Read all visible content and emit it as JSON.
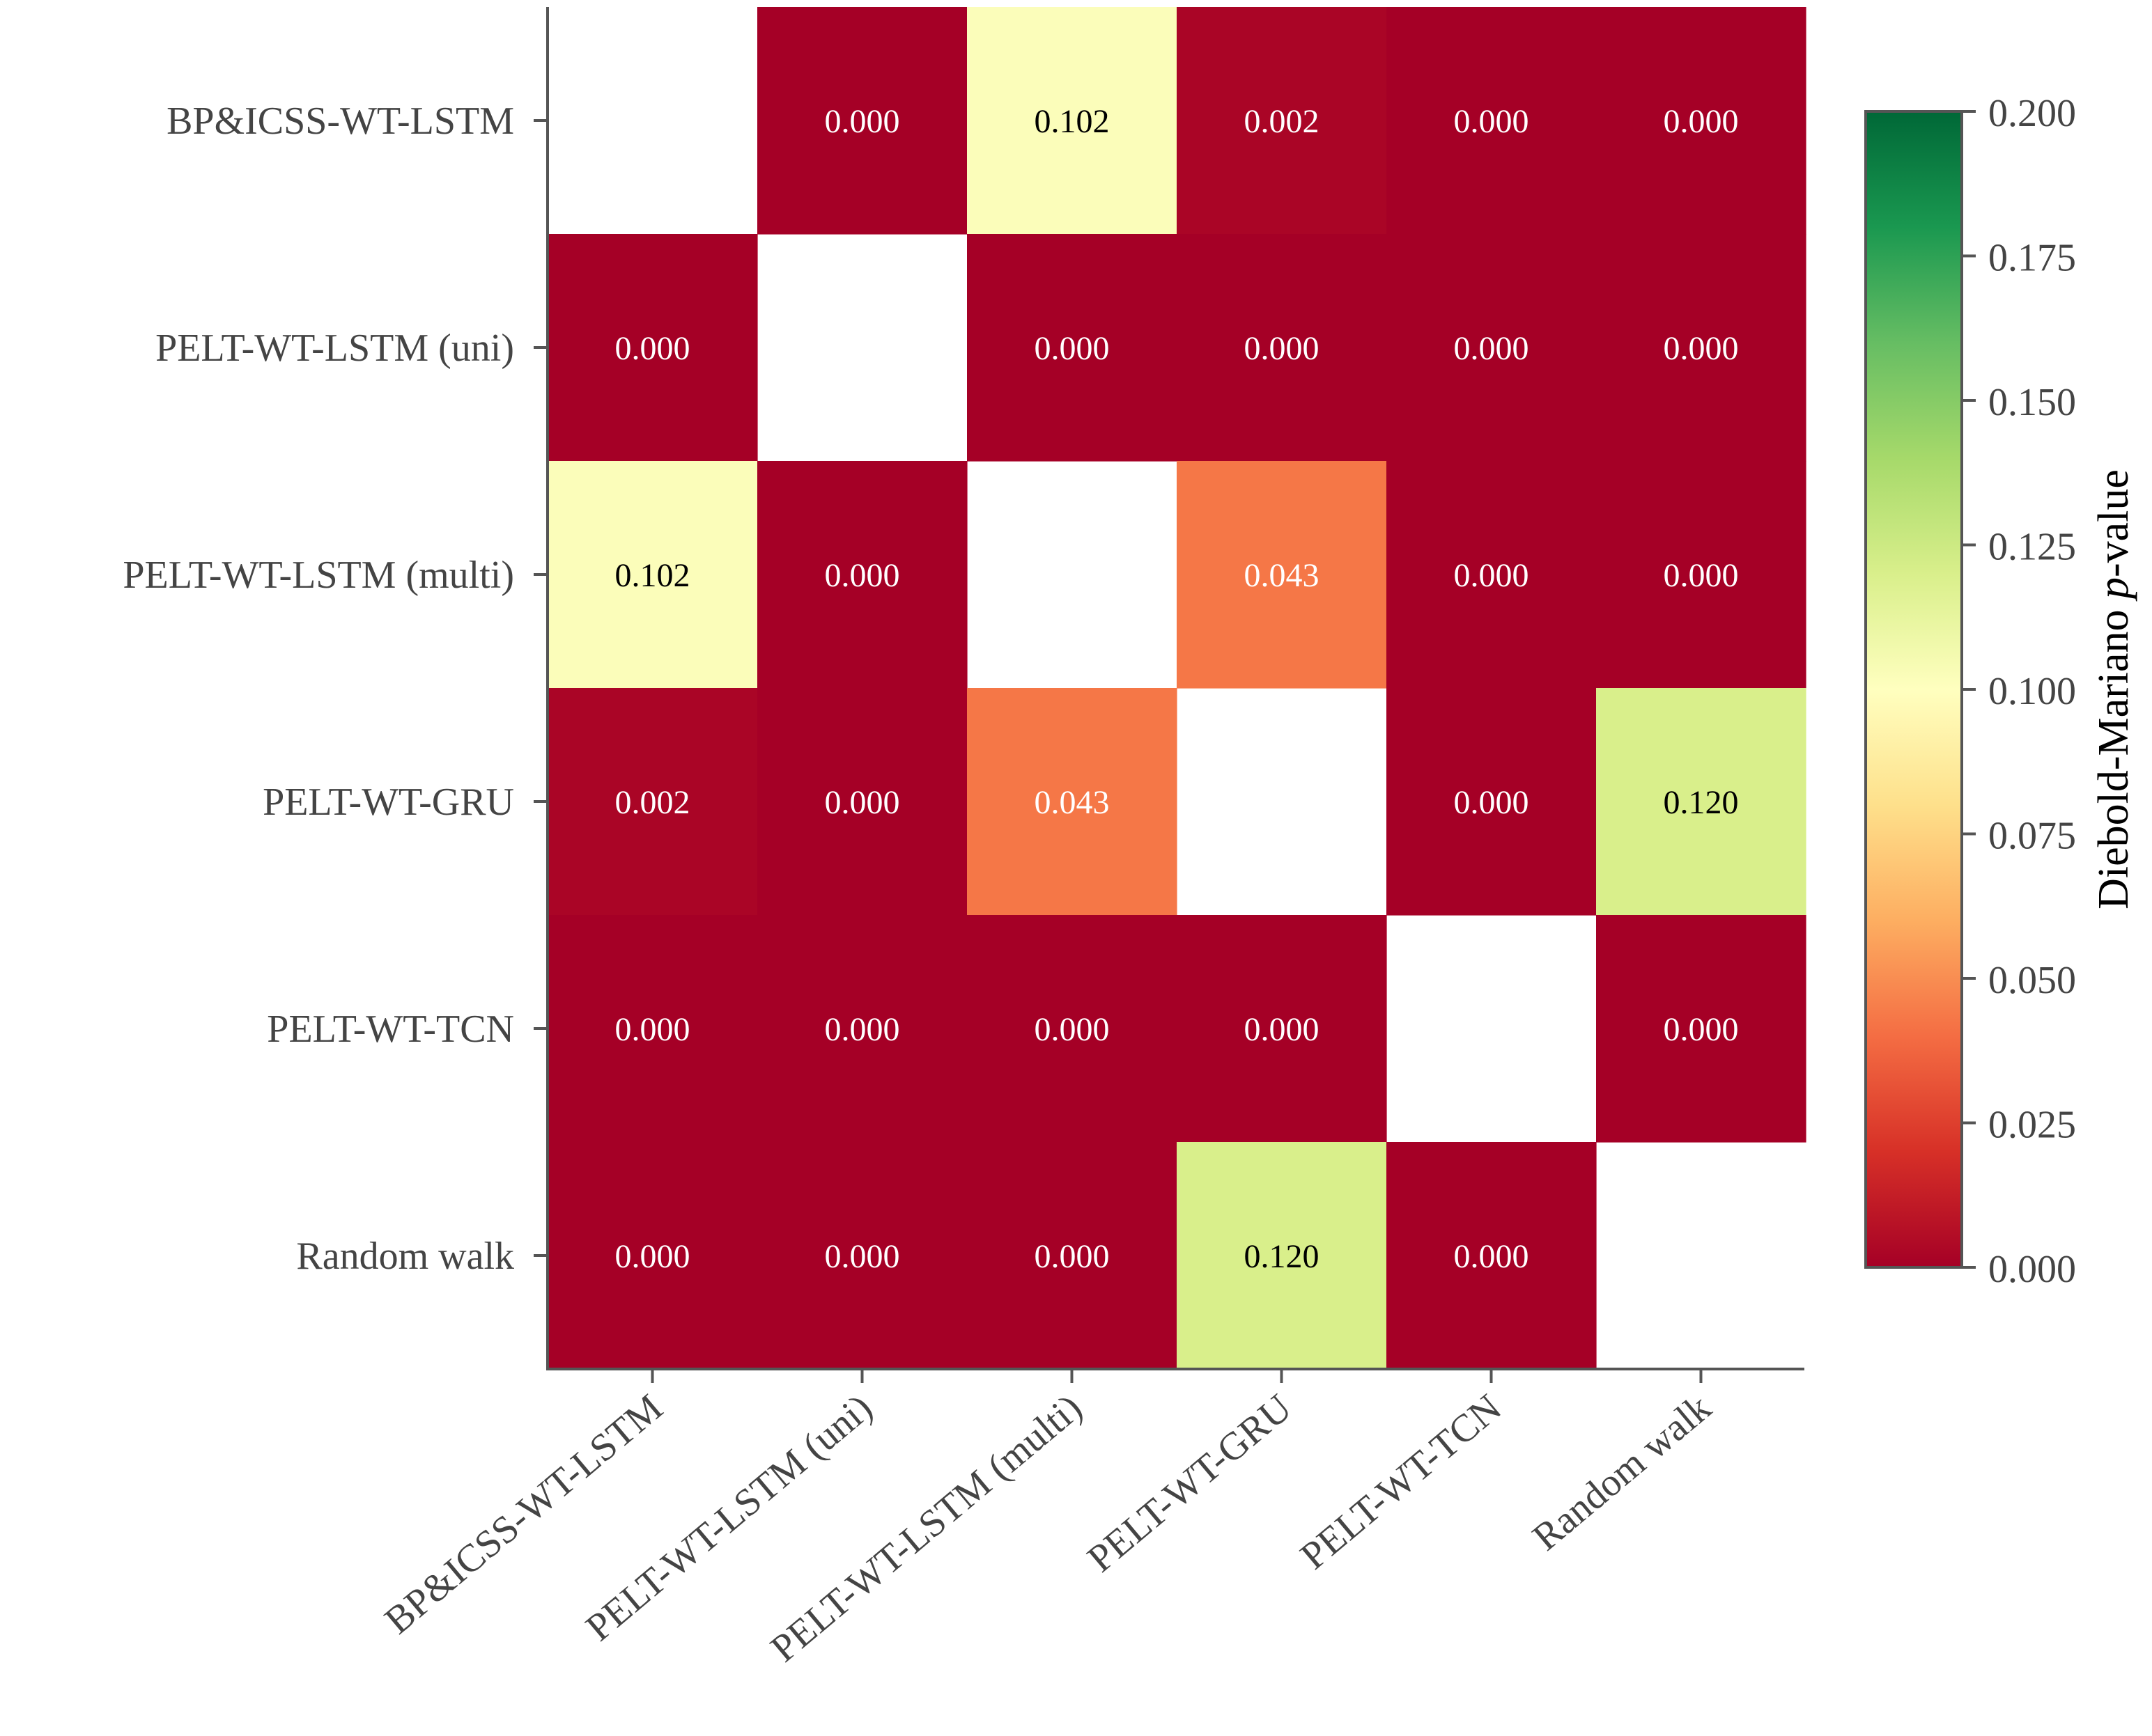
{
  "chart_data": {
    "type": "heatmap",
    "row_labels": [
      "BP&ICSS-WT-LSTM",
      "PELT-WT-LSTM (uni)",
      "PELT-WT-LSTM (multi)",
      "PELT-WT-GRU",
      "PELT-WT-TCN",
      "Random walk"
    ],
    "col_labels": [
      "BP&ICSS-WT-LSTM",
      "PELT-WT-LSTM (uni)",
      "PELT-WT-LSTM (multi)",
      "PELT-WT-GRU",
      "PELT-WT-TCN",
      "Random walk"
    ],
    "values": [
      [
        null,
        0.0,
        0.102,
        0.002,
        0.0,
        0.0
      ],
      [
        0.0,
        null,
        0.0,
        0.0,
        0.0,
        0.0
      ],
      [
        0.102,
        0.0,
        null,
        0.043,
        0.0,
        0.0
      ],
      [
        0.002,
        0.0,
        0.043,
        null,
        0.0,
        0.12
      ],
      [
        0.0,
        0.0,
        0.0,
        0.0,
        null,
        0.0
      ],
      [
        0.0,
        0.0,
        0.0,
        0.12,
        0.0,
        null
      ]
    ],
    "value_format": "3 decimals",
    "colormap": "RdYlGn",
    "colorbar": {
      "label_prefix": "Diebold-Mariano ",
      "label_italic": "p",
      "label_suffix": "-value",
      "vmin": 0.0,
      "vmax": 0.2,
      "ticks": [
        0.0,
        0.025,
        0.05,
        0.075,
        0.1,
        0.125,
        0.15,
        0.175,
        0.2
      ]
    },
    "diagonal": "blank",
    "colors": {
      "stops": [
        "#a50026",
        "#d73027",
        "#f46d43",
        "#fdae61",
        "#fee08b",
        "#ffffbf",
        "#d9ef8b",
        "#a6d96a",
        "#66bd63",
        "#1a9850",
        "#006837"
      ],
      "dark_text": "#000000",
      "light_text": "#ffffff",
      "axis": "#555555",
      "tick_text": "#444444"
    }
  }
}
